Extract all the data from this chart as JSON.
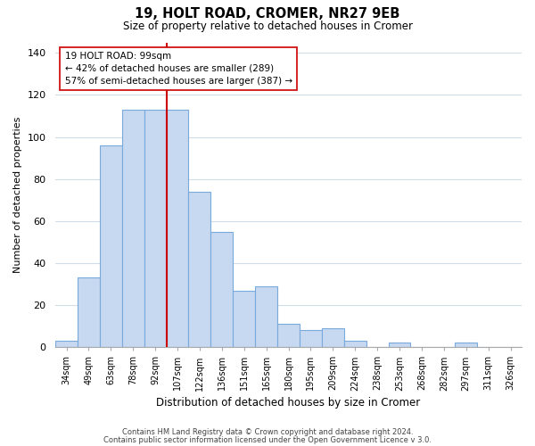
{
  "title": "19, HOLT ROAD, CROMER, NR27 9EB",
  "subtitle": "Size of property relative to detached houses in Cromer",
  "xlabel": "Distribution of detached houses by size in Cromer",
  "ylabel": "Number of detached properties",
  "bar_labels": [
    "34sqm",
    "49sqm",
    "63sqm",
    "78sqm",
    "92sqm",
    "107sqm",
    "122sqm",
    "136sqm",
    "151sqm",
    "165sqm",
    "180sqm",
    "195sqm",
    "209sqm",
    "224sqm",
    "238sqm",
    "253sqm",
    "268sqm",
    "282sqm",
    "297sqm",
    "311sqm",
    "326sqm"
  ],
  "bar_values": [
    3,
    33,
    96,
    113,
    113,
    113,
    74,
    55,
    27,
    29,
    11,
    8,
    9,
    3,
    0,
    2,
    0,
    0,
    2,
    0,
    0
  ],
  "bar_color": "#c6d9f0",
  "bar_edge_color": "#7aaadc",
  "vline_color": "#cc0000",
  "vline_index": 4,
  "annotation_title": "19 HOLT ROAD: 99sqm",
  "annotation_line1": "← 42% of detached houses are smaller (289)",
  "annotation_line2": "57% of semi-detached houses are larger (387) →",
  "annotation_box_color": "#ffffff",
  "annotation_box_edge": "#cc0000",
  "ylim": [
    0,
    145
  ],
  "footer1": "Contains HM Land Registry data © Crown copyright and database right 2024.",
  "footer2": "Contains public sector information licensed under the Open Government Licence v 3.0.",
  "bg_color": "#ffffff",
  "grid_color": "#d0dce8"
}
